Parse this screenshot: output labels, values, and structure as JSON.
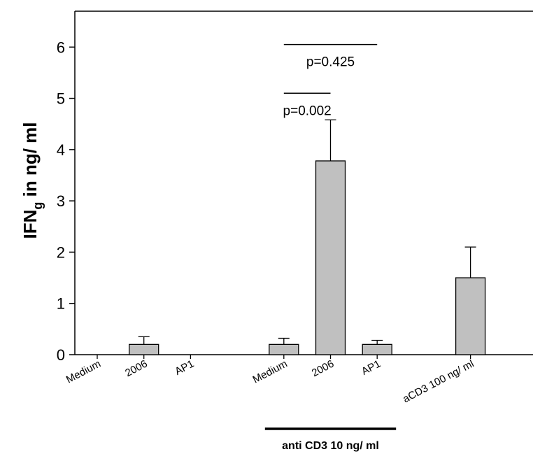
{
  "chart_data": {
    "type": "bar",
    "ylabel": "IFN",
    "ylabel_sub": "g",
    "ylabel_suffix": " in ng/ ml",
    "ylim": [
      0,
      6.7
    ],
    "yticks": [
      0,
      1,
      2,
      3,
      4,
      5,
      6
    ],
    "grid": false,
    "bar_color": "#c0c0c0",
    "bars": [
      {
        "label": "Medium",
        "value": 0,
        "error": 0,
        "pos": 0
      },
      {
        "label": "2006",
        "value": 0.2,
        "error": 0.15,
        "pos": 1
      },
      {
        "label": "AP1",
        "value": 0,
        "error": 0,
        "pos": 2
      },
      {
        "label": "Medium",
        "value": 0.2,
        "error": 0.12,
        "pos": 4
      },
      {
        "label": "2006",
        "value": 3.78,
        "error": 0.8,
        "pos": 5
      },
      {
        "label": "AP1",
        "value": 0.2,
        "error": 0.08,
        "pos": 6
      },
      {
        "label": "aCD3 100 ng/ ml",
        "value": 1.5,
        "error": 0.6,
        "pos": 8
      }
    ],
    "annotations": [
      {
        "text": "p=0.002",
        "from_pos": 4,
        "to_pos": 5,
        "level": 5.1
      },
      {
        "text": "p=0.425",
        "from_pos": 4,
        "to_pos": 6,
        "level": 6.05
      }
    ],
    "group": {
      "label": "anti CD3 10 ng/ ml",
      "from_pos": 4,
      "to_pos": 6
    }
  }
}
